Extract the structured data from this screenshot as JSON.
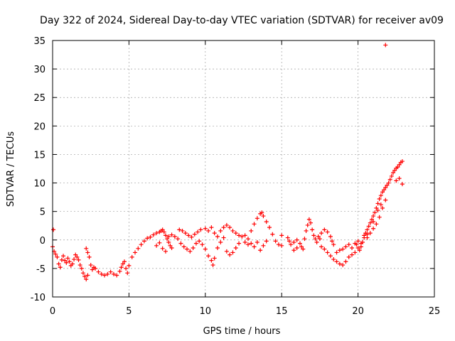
{
  "chart_data": {
    "type": "scatter",
    "title": "Day 322 of 2024, Sidereal Day-to-day VTEC variation (SDTVAR) for receiver av09",
    "xlabel": "GPS time / hours",
    "ylabel": "SDTVAR / TECUs",
    "xlim": [
      0,
      25
    ],
    "ylim": [
      -10,
      35
    ],
    "xticks": [
      0,
      5,
      10,
      15,
      20,
      25
    ],
    "yticks": [
      -10,
      -5,
      0,
      5,
      10,
      15,
      20,
      25,
      30,
      35
    ],
    "xtick_labels": [
      "0",
      "5",
      "10",
      "15",
      "20",
      "25"
    ],
    "ytick_labels": [
      "-10",
      "-5",
      "0",
      "5",
      "10",
      "15",
      "20",
      "25",
      "30",
      "35"
    ],
    "grid": true,
    "marker": "+",
    "color": "#ff0000",
    "series": [
      {
        "name": "SDTVAR",
        "points": [
          [
            0.05,
            1.8
          ],
          [
            0.0,
            -1.2
          ],
          [
            0.1,
            -2.0
          ],
          [
            0.2,
            -2.5
          ],
          [
            0.3,
            -3.0
          ],
          [
            0.4,
            -4.2
          ],
          [
            0.5,
            -4.8
          ],
          [
            0.6,
            -3.5
          ],
          [
            0.7,
            -2.8
          ],
          [
            0.8,
            -3.6
          ],
          [
            0.9,
            -4.0
          ],
          [
            1.0,
            -3.2
          ],
          [
            1.1,
            -3.8
          ],
          [
            1.2,
            -4.5
          ],
          [
            1.3,
            -4.2
          ],
          [
            1.4,
            -3.4
          ],
          [
            1.5,
            -2.6
          ],
          [
            1.6,
            -3.0
          ],
          [
            1.7,
            -3.5
          ],
          [
            1.8,
            -4.4
          ],
          [
            1.9,
            -5.0
          ],
          [
            2.0,
            -5.8
          ],
          [
            2.1,
            -6.4
          ],
          [
            2.2,
            -6.9
          ],
          [
            2.3,
            -6.2
          ],
          [
            2.2,
            -1.5
          ],
          [
            2.3,
            -2.2
          ],
          [
            2.4,
            -3.0
          ],
          [
            2.5,
            -4.4
          ],
          [
            2.6,
            -5.2
          ],
          [
            2.7,
            -4.8
          ],
          [
            2.8,
            -5.0
          ],
          [
            3.0,
            -5.6
          ],
          [
            3.2,
            -6.0
          ],
          [
            3.4,
            -6.2
          ],
          [
            3.6,
            -6.0
          ],
          [
            3.8,
            -5.6
          ],
          [
            4.0,
            -6.0
          ],
          [
            4.2,
            -6.2
          ],
          [
            4.4,
            -5.5
          ],
          [
            4.5,
            -4.8
          ],
          [
            4.6,
            -4.2
          ],
          [
            4.7,
            -3.8
          ],
          [
            4.8,
            -5.0
          ],
          [
            4.9,
            -5.8
          ],
          [
            5.0,
            -4.5
          ],
          [
            5.2,
            -3.0
          ],
          [
            5.4,
            -2.2
          ],
          [
            5.6,
            -1.5
          ],
          [
            5.8,
            -0.8
          ],
          [
            6.0,
            -0.2
          ],
          [
            6.2,
            0.3
          ],
          [
            6.4,
            0.5
          ],
          [
            6.6,
            0.9
          ],
          [
            6.8,
            1.2
          ],
          [
            7.0,
            1.4
          ],
          [
            7.1,
            1.6
          ],
          [
            7.2,
            1.8
          ],
          [
            7.3,
            1.4
          ],
          [
            7.4,
            0.8
          ],
          [
            7.5,
            0.2
          ],
          [
            7.6,
            -0.4
          ],
          [
            7.7,
            -1.0
          ],
          [
            7.8,
            -1.4
          ],
          [
            7.0,
            -0.5
          ],
          [
            7.2,
            -1.5
          ],
          [
            7.4,
            -2.0
          ],
          [
            6.8,
            -1.0
          ],
          [
            7.6,
            0.6
          ],
          [
            7.8,
            0.9
          ],
          [
            8.0,
            0.6
          ],
          [
            8.2,
            0.2
          ],
          [
            8.3,
            1.8
          ],
          [
            8.5,
            1.6
          ],
          [
            8.7,
            1.2
          ],
          [
            8.9,
            0.8
          ],
          [
            9.1,
            0.5
          ],
          [
            9.3,
            1.0
          ],
          [
            9.5,
            1.4
          ],
          [
            9.7,
            1.8
          ],
          [
            8.4,
            -0.6
          ],
          [
            8.6,
            -1.2
          ],
          [
            8.8,
            -1.6
          ],
          [
            9.0,
            -2.0
          ],
          [
            9.2,
            -1.4
          ],
          [
            9.4,
            -0.6
          ],
          [
            9.6,
            -0.2
          ],
          [
            9.8,
            -0.8
          ],
          [
            10.0,
            -1.6
          ],
          [
            10.2,
            -2.8
          ],
          [
            10.4,
            -3.6
          ],
          [
            10.5,
            -4.4
          ],
          [
            10.6,
            -3.2
          ],
          [
            10.8,
            -1.4
          ],
          [
            11.0,
            -0.4
          ],
          [
            11.2,
            0.4
          ],
          [
            10.0,
            2.0
          ],
          [
            10.2,
            1.6
          ],
          [
            10.4,
            2.2
          ],
          [
            10.6,
            1.2
          ],
          [
            10.8,
            0.6
          ],
          [
            11.0,
            1.6
          ],
          [
            11.2,
            2.2
          ],
          [
            11.4,
            2.6
          ],
          [
            11.6,
            2.2
          ],
          [
            11.8,
            1.6
          ],
          [
            12.0,
            1.2
          ],
          [
            12.2,
            0.8
          ],
          [
            11.4,
            -2.0
          ],
          [
            11.6,
            -2.6
          ],
          [
            11.8,
            -2.2
          ],
          [
            12.0,
            -1.4
          ],
          [
            12.4,
            0.6
          ],
          [
            12.6,
            0.8
          ],
          [
            12.8,
            0.2
          ],
          [
            13.0,
            1.6
          ],
          [
            13.2,
            2.8
          ],
          [
            13.4,
            3.8
          ],
          [
            13.6,
            4.6
          ],
          [
            13.7,
            4.8
          ],
          [
            13.8,
            4.2
          ],
          [
            14.0,
            3.2
          ],
          [
            14.2,
            2.2
          ],
          [
            14.4,
            1.0
          ],
          [
            14.6,
            -0.2
          ],
          [
            14.8,
            -0.8
          ],
          [
            13.0,
            -0.6
          ],
          [
            13.2,
            -1.2
          ],
          [
            13.4,
            -0.4
          ],
          [
            13.6,
            -1.8
          ],
          [
            13.8,
            -1.0
          ],
          [
            14.0,
            -0.2
          ],
          [
            12.8,
            -0.8
          ],
          [
            12.6,
            -0.4
          ],
          [
            12.2,
            -0.6
          ],
          [
            15.0,
            0.8
          ],
          [
            15.0,
            -1.0
          ],
          [
            15.4,
            0.4
          ],
          [
            15.5,
            -0.2
          ],
          [
            15.6,
            -0.8
          ],
          [
            15.8,
            -0.4
          ],
          [
            16.0,
            0.0
          ],
          [
            16.2,
            -0.6
          ],
          [
            16.3,
            -1.2
          ],
          [
            16.4,
            -1.6
          ],
          [
            16.0,
            -1.4
          ],
          [
            15.8,
            -1.8
          ],
          [
            16.5,
            0.2
          ],
          [
            16.6,
            1.6
          ],
          [
            16.7,
            2.6
          ],
          [
            16.8,
            3.6
          ],
          [
            16.9,
            3.0
          ],
          [
            17.0,
            1.8
          ],
          [
            17.1,
            0.8
          ],
          [
            17.2,
            0.2
          ],
          [
            17.3,
            -0.4
          ],
          [
            17.4,
            0.6
          ],
          [
            17.5,
            0.2
          ],
          [
            17.6,
            1.2
          ],
          [
            17.8,
            1.8
          ],
          [
            18.0,
            1.4
          ],
          [
            18.2,
            0.6
          ],
          [
            18.3,
            -0.2
          ],
          [
            18.4,
            -0.8
          ],
          [
            17.6,
            -1.2
          ],
          [
            17.8,
            -1.6
          ],
          [
            18.0,
            -2.2
          ],
          [
            18.2,
            -2.8
          ],
          [
            18.4,
            -3.4
          ],
          [
            18.6,
            -3.8
          ],
          [
            18.8,
            -4.2
          ],
          [
            19.0,
            -4.4
          ],
          [
            19.2,
            -3.8
          ],
          [
            19.4,
            -3.0
          ],
          [
            19.6,
            -2.6
          ],
          [
            19.8,
            -2.2
          ],
          [
            18.6,
            -2.2
          ],
          [
            18.8,
            -1.8
          ],
          [
            19.0,
            -1.6
          ],
          [
            19.2,
            -1.2
          ],
          [
            19.4,
            -0.8
          ],
          [
            19.6,
            -1.4
          ],
          [
            19.8,
            -0.6
          ],
          [
            20.0,
            -0.2
          ],
          [
            20.1,
            -1.8
          ],
          [
            20.2,
            -1.2
          ],
          [
            20.3,
            -0.4
          ],
          [
            20.4,
            0.4
          ],
          [
            20.5,
            1.2
          ],
          [
            20.6,
            1.8
          ],
          [
            20.7,
            2.4
          ],
          [
            20.8,
            3.0
          ],
          [
            20.9,
            3.6
          ],
          [
            21.0,
            4.2
          ],
          [
            21.1,
            4.8
          ],
          [
            21.2,
            5.6
          ],
          [
            21.3,
            6.4
          ],
          [
            21.4,
            7.2
          ],
          [
            21.5,
            7.8
          ],
          [
            21.6,
            8.4
          ],
          [
            21.7,
            8.8
          ],
          [
            21.8,
            9.2
          ],
          [
            21.9,
            9.6
          ],
          [
            22.0,
            10.0
          ],
          [
            22.1,
            10.6
          ],
          [
            22.2,
            11.2
          ],
          [
            22.3,
            11.8
          ],
          [
            22.4,
            12.2
          ],
          [
            22.5,
            12.6
          ],
          [
            22.6,
            12.8
          ],
          [
            22.7,
            13.2
          ],
          [
            22.8,
            13.6
          ],
          [
            22.9,
            13.8
          ],
          [
            22.5,
            10.4
          ],
          [
            22.7,
            10.8
          ],
          [
            22.9,
            9.8
          ],
          [
            21.8,
            34.2
          ],
          [
            20.6,
            0.4
          ],
          [
            20.8,
            1.2
          ],
          [
            21.0,
            2.0
          ],
          [
            21.2,
            2.8
          ],
          [
            21.4,
            4.0
          ],
          [
            21.6,
            5.6
          ],
          [
            21.8,
            7.0
          ],
          [
            19.9,
            -0.8
          ],
          [
            20.0,
            -1.4
          ],
          [
            20.2,
            -0.6
          ],
          [
            20.4,
            0.8
          ],
          [
            20.6,
            1.0
          ],
          [
            21.0,
            3.2
          ],
          [
            21.3,
            5.2
          ],
          [
            21.5,
            6.2
          ]
        ]
      }
    ]
  }
}
